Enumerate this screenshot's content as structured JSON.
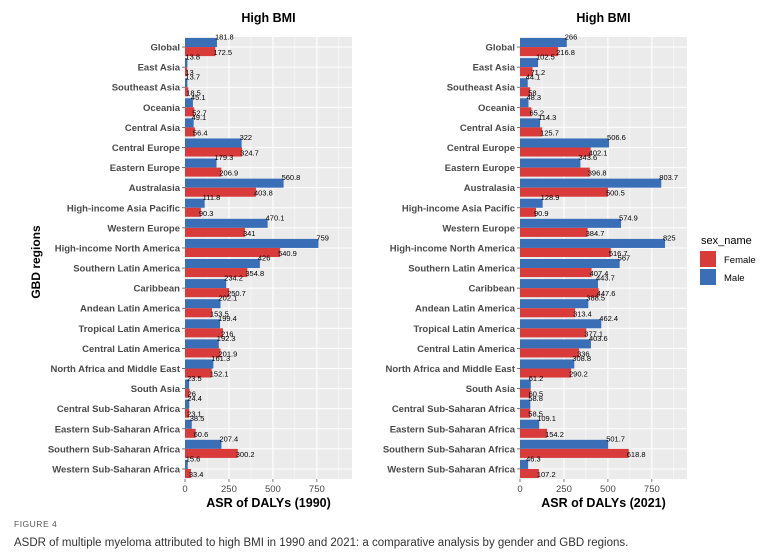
{
  "figure": {
    "y_axis_label": "GBD regions",
    "caption_label": "FIGURE 4",
    "caption_text": "ASDR of multiple myeloma attributed to high BMI in 1990 and 2021: a comparative analysis by gender and GBD regions."
  },
  "colors": {
    "Female": "#d93b3b",
    "Male": "#3a6fb8",
    "panel_bg": "#ebebeb"
  },
  "legend": {
    "title": "sex_name",
    "items": [
      "Female",
      "Male"
    ]
  },
  "chart_data": [
    {
      "type": "bar",
      "orientation": "horizontal",
      "title": "High BMI",
      "xlabel": "ASR of DALYs (1990)",
      "ylabel": "GBD regions",
      "xticks": [
        0,
        250,
        500,
        750
      ],
      "xlim": [
        0,
        950
      ],
      "grid": true,
      "categories": [
        "Global",
        "East Asia",
        "Southeast Asia",
        "Oceania",
        "Central Asia",
        "Central Europe",
        "Eastern Europe",
        "Australasia",
        "High-income Asia Pacific",
        "Western Europe",
        "High-income North America",
        "Southern Latin America",
        "Caribbean",
        "Andean Latin America",
        "Tropical Latin America",
        "Central Latin America",
        "North Africa and Middle East",
        "South Asia",
        "Central Sub-Saharan Africa",
        "Eastern Sub-Saharan Africa",
        "Southern Sub-Saharan Africa",
        "Western Sub-Saharan Africa"
      ],
      "series": [
        {
          "name": "Male",
          "values": [
            181.8,
            13.8,
            13.7,
            45.1,
            49.1,
            322,
            179.3,
            560.8,
            111.8,
            470.1,
            759,
            426,
            234.2,
            202.1,
            199.4,
            192.3,
            161.3,
            23.5,
            24.4,
            38.5,
            207.4,
            15.6
          ],
          "labels": [
            "181.8",
            "13.8",
            "13.7",
            "45.1",
            "49.1",
            "322",
            "179.3",
            "560.8",
            "111.8",
            "470.1",
            "759",
            "426",
            "234.2",
            "202.1",
            "199.4",
            "192.3",
            "161.3",
            "23.5",
            "24.4",
            "38.5",
            "207.4",
            "15.6"
          ]
        },
        {
          "name": "Female",
          "values": [
            172.5,
            13,
            18.5,
            52.7,
            56.4,
            324.7,
            206.9,
            403.8,
            90.3,
            341,
            540.9,
            354.8,
            250.7,
            153.5,
            216,
            201.9,
            152.1,
            26,
            23.1,
            60.6,
            300.2,
            33.4
          ],
          "labels": [
            "172.5",
            "13",
            "18.5",
            "52.7",
            "56.4",
            "324.7",
            "206.9",
            "403.8",
            "90.3",
            "341",
            "540.9",
            "354.8",
            "250.7",
            "153.5",
            "216",
            "201.9",
            "152.1",
            "26",
            "23.1",
            "60.6",
            "300.2",
            "33.4"
          ]
        }
      ]
    },
    {
      "type": "bar",
      "orientation": "horizontal",
      "title": "High BMI",
      "xlabel": "ASR of DALYs (2021)",
      "ylabel": "GBD regions",
      "xticks": [
        0,
        250,
        500,
        750
      ],
      "xlim": [
        0,
        950
      ],
      "grid": true,
      "categories": [
        "Global",
        "East Asia",
        "Southeast Asia",
        "Oceania",
        "Central Asia",
        "Central Europe",
        "Eastern Europe",
        "Australasia",
        "High-income Asia Pacific",
        "Western Europe",
        "High-income North America",
        "Southern Latin America",
        "Caribbean",
        "Andean Latin America",
        "Tropical Latin America",
        "Central Latin America",
        "North Africa and Middle East",
        "South Asia",
        "Central Sub-Saharan Africa",
        "Eastern Sub-Saharan Africa",
        "Southern Sub-Saharan Africa",
        "Western Sub-Saharan Africa"
      ],
      "series": [
        {
          "name": "Male",
          "values": [
            266,
            102.5,
            44.1,
            48.3,
            114.3,
            506.6,
            343.6,
            803.7,
            128.9,
            574.9,
            825,
            567,
            443.7,
            388.5,
            462.4,
            403.6,
            308.8,
            61.2,
            58.8,
            109.1,
            501.7,
            46.3
          ],
          "labels": [
            "266",
            "102.5",
            "44.1",
            "48.3",
            "114.3",
            "506.6",
            "343.6",
            "803.7",
            "128.9",
            "574.9",
            "825",
            "567",
            "443.7",
            "388.5",
            "462.4",
            "403.6",
            "308.8",
            "61.2",
            "58.8",
            "109.1",
            "501.7",
            "46.3"
          ]
        },
        {
          "name": "Female",
          "values": [
            216.8,
            71.2,
            58,
            65.2,
            125.7,
            402.1,
            396.8,
            500.5,
            90.9,
            384.7,
            516.7,
            407.4,
            447.6,
            313.4,
            377.1,
            336,
            290.2,
            60.5,
            58.5,
            154.2,
            618.8,
            107.2
          ],
          "labels": [
            "216.8",
            "71.2",
            "58",
            "65.2",
            "125.7",
            "402.1",
            "396.8",
            "500.5",
            "90.9",
            "384.7",
            "516.7",
            "407.4",
            "447.6",
            "313.4",
            "377.1",
            "336",
            "290.2",
            "60.5",
            "58.5",
            "154.2",
            "618.8",
            "107.2"
          ]
        }
      ]
    }
  ]
}
